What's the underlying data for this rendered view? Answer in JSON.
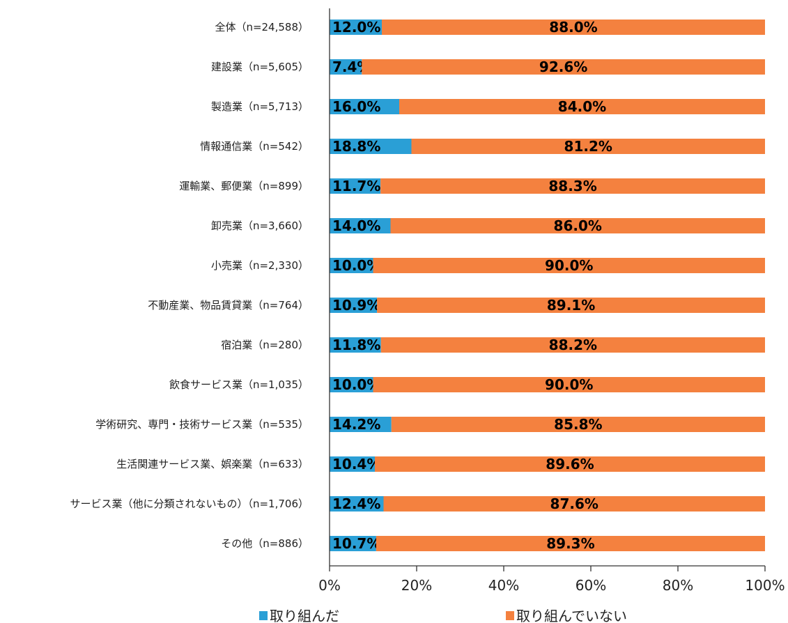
{
  "chart_data": {
    "type": "bar",
    "orientation": "horizontal",
    "stacked": "percent",
    "categories": [
      "全体（n=24,588）",
      "建設業（n=5,605）",
      "製造業（n=5,713）",
      "情報通信業（n=542）",
      "運輸業、郵便業（n=899）",
      "卸売業（n=3,660）",
      "小売業（n=2,330）",
      "不動産業、物品賃貸業（n=764）",
      "宿泊業（n=280）",
      "飲食サービス業（n=1,035）",
      "学術研究、専門・技術サービス業（n=535）",
      "生活関連サービス業、娯楽業（n=633）",
      "サービス業（他に分類されないもの）（n=1,706）",
      "その他（n=886）"
    ],
    "series": [
      {
        "name": "取り組んだ",
        "color": "#2a9fd6",
        "values": [
          12.0,
          7.4,
          16.0,
          18.8,
          11.7,
          14.0,
          10.0,
          10.9,
          11.8,
          10.0,
          14.2,
          10.4,
          12.4,
          10.7
        ]
      },
      {
        "name": "取り組んでいない",
        "color": "#f4813f",
        "values": [
          88.0,
          92.6,
          84.0,
          81.2,
          88.3,
          86.0,
          90.0,
          89.1,
          88.2,
          90.0,
          85.8,
          89.6,
          87.6,
          89.3
        ]
      }
    ],
    "xlim": [
      0,
      100
    ],
    "xticks": [
      "0%",
      "20%",
      "40%",
      "60%",
      "80%",
      "100%"
    ],
    "value_suffix": "%",
    "grid": false,
    "legend_position": "bottom"
  }
}
